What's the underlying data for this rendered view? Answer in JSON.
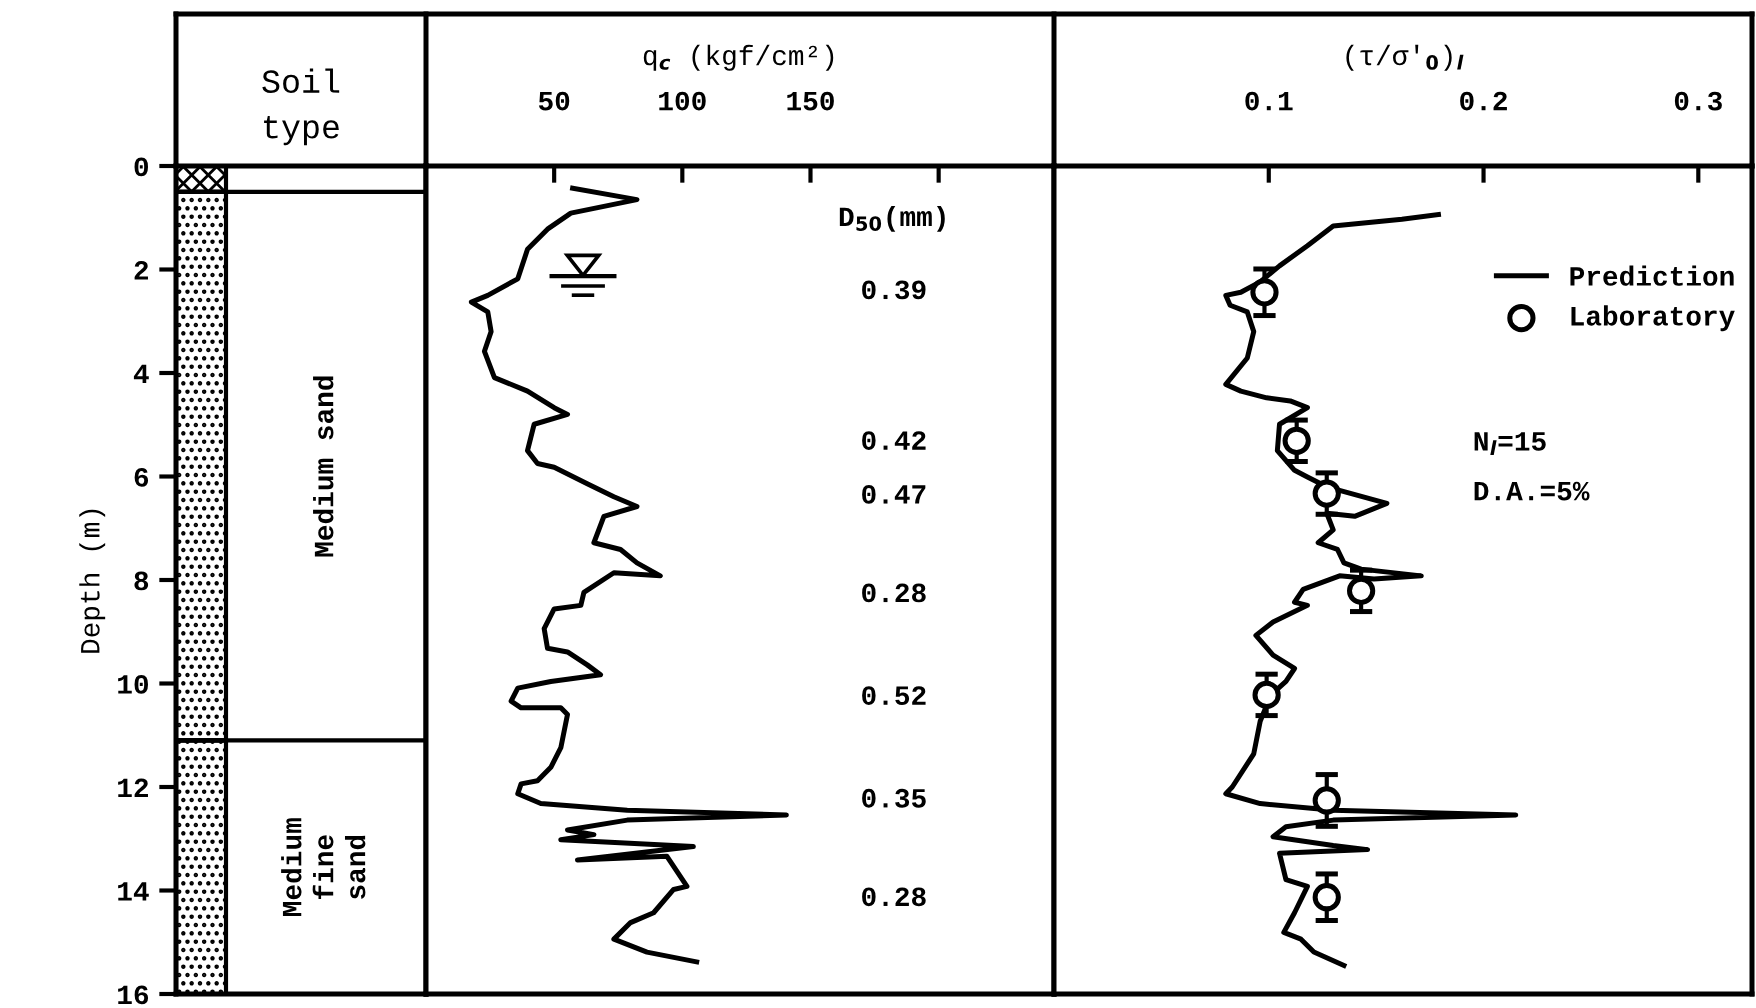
{
  "chart_data": [
    {
      "type": "bar",
      "stacked": true,
      "title": "Soil\ntype",
      "ylabel": "Depth (m)",
      "categories": [
        null
      ],
      "ylim": [
        16,
        0
      ],
      "yticks": [
        0,
        2,
        4,
        6,
        8,
        10,
        12,
        14,
        16
      ],
      "tick_labels": "y",
      "ref_lines": [
        {
          "axis": "y",
          "value": 0.5,
          "color": "#000000"
        },
        {
          "axis": "y",
          "value": 11.1,
          "color": "#000000"
        }
      ],
      "series": [
        {
          "color": "#000000",
          "values": [
            0.5
          ]
        },
        {
          "name": "Medium sand",
          "color": "#000000",
          "values": [
            10.6
          ]
        },
        {
          "name": "Medium\nfine\nsand",
          "color": "#000000",
          "values": [
            4.9
          ]
        }
      ]
    },
    {
      "type": "line",
      "xlabel": "q$_{c}$ (kgf/cm²)",
      "xlim": [
        0,
        245
      ],
      "xticks": [
        50,
        100,
        150,
        {
          "value": 200,
          "label": null
        }
      ],
      "ylim": [
        16,
        0
      ],
      "tick_labels": "x",
      "series": [
        {
          "color": "#000000",
          "x": [
            57.2,
            82.3,
            56.5,
            47.4,
            39.6,
            35.8,
            24.1,
            17.7,
            24.1,
            25.4,
            22.8,
            26.7,
            39.6,
            50.0,
            55.2,
            42.2,
            39.6,
            43.5,
            50.0,
            62.9,
            73.3,
            82.3,
            69.4,
            65.5,
            75.9,
            82.3,
            91.4,
            73.3,
            61.6,
            60.4,
            50.0,
            46.1,
            47.4,
            55.2,
            62.9,
            68.1,
            48.7,
            35.8,
            33.2,
            37.1,
            52.6,
            55.2,
            52.6,
            48.7,
            43.5,
            37.1,
            35.8,
            44.8,
            78.5,
            140.6,
            78.5,
            55.2,
            65.5,
            52.6,
            104.3,
            59.1,
            94.0,
            101.8,
            96.6,
            88.8,
            79.8,
            73.3,
            86.2,
            105.6
          ],
          "values": [
            0.43,
            0.65,
            0.91,
            1.22,
            1.61,
            2.18,
            2.5,
            2.63,
            2.82,
            3.2,
            3.58,
            4.09,
            4.35,
            4.67,
            4.8,
            4.99,
            5.5,
            5.75,
            5.82,
            6.14,
            6.39,
            6.58,
            6.77,
            7.28,
            7.41,
            7.67,
            7.92,
            7.86,
            8.24,
            8.49,
            8.56,
            8.94,
            9.32,
            9.39,
            9.64,
            9.83,
            9.96,
            10.09,
            10.34,
            10.47,
            10.47,
            10.6,
            11.24,
            11.62,
            11.88,
            11.94,
            12.13,
            12.32,
            12.45,
            12.54,
            12.64,
            12.83,
            12.92,
            13.02,
            13.15,
            13.41,
            13.34,
            13.92,
            13.98,
            14.43,
            14.62,
            14.94,
            15.19,
            15.38
          ]
        }
      ],
      "annotations": [
        "D$_{50}$(mm)",
        "0.39",
        "0.42",
        "0.47",
        "0.28",
        "0.52",
        "0.35",
        "0.28"
      ]
    },
    {
      "type": "line",
      "xlabel": "(τ/σ'$_{0}$)$_{l}$",
      "xlim": [
        0,
        0.325
      ],
      "xticks": [
        0.1,
        0.2,
        0.3
      ],
      "ylim": [
        16,
        0
      ],
      "tick_labels": "x",
      "legend": "top right",
      "series": [
        {
          "name": "Prediction",
          "color": "#000000",
          "x": [
            0.179,
            0.162,
            0.13,
            0.118,
            0.105,
            0.096,
            0.087,
            0.08,
            0.082,
            0.09,
            0.093,
            0.09,
            0.08,
            0.087,
            0.099,
            0.11,
            0.118,
            0.105,
            0.104,
            0.112,
            0.118,
            0.127,
            0.155,
            0.14,
            0.127,
            0.13,
            0.123,
            0.132,
            0.135,
            0.143,
            0.171,
            0.149,
            0.133,
            0.116,
            0.112,
            0.118,
            0.102,
            0.094,
            0.102,
            0.112,
            0.108,
            0.101,
            0.096,
            0.093,
            0.083,
            0.08,
            0.096,
            0.13,
            0.215,
            0.13,
            0.108,
            0.102,
            0.13,
            0.146,
            0.105,
            0.108,
            0.118,
            0.112,
            0.107,
            0.115,
            0.121,
            0.135
          ],
          "values": [
            0.94,
            1.03,
            1.16,
            1.54,
            1.93,
            2.24,
            2.44,
            2.5,
            2.69,
            2.82,
            3.2,
            3.71,
            4.22,
            4.35,
            4.48,
            4.54,
            4.67,
            4.99,
            5.5,
            5.88,
            6.01,
            6.2,
            6.52,
            6.77,
            6.71,
            7.03,
            7.28,
            7.41,
            7.67,
            7.79,
            7.92,
            7.98,
            7.92,
            8.18,
            8.43,
            8.49,
            8.81,
            9.07,
            9.45,
            9.71,
            9.96,
            10.22,
            10.73,
            11.36,
            12.0,
            12.13,
            12.32,
            12.45,
            12.54,
            12.64,
            12.77,
            12.96,
            13.13,
            13.21,
            13.28,
            13.79,
            13.92,
            14.43,
            14.81,
            14.94,
            15.19,
            15.45
          ]
        },
        {
          "name": "Laboratory",
          "type": "scatter",
          "marker": "circle",
          "color": "#000000",
          "x": [
            0.098,
            0.113,
            0.127,
            0.143,
            0.099,
            0.127,
            0.127
          ],
          "values": [
            2.44,
            5.31,
            6.33,
            8.21,
            10.22,
            12.26,
            14.13
          ],
          "errors": [
            0.45,
            0.4,
            0.4,
            0.4,
            0.4,
            0.5,
            0.45
          ]
        }
      ],
      "annotations": [
        "N$_{l}$=15",
        "D.A.=5%"
      ]
    }
  ]
}
